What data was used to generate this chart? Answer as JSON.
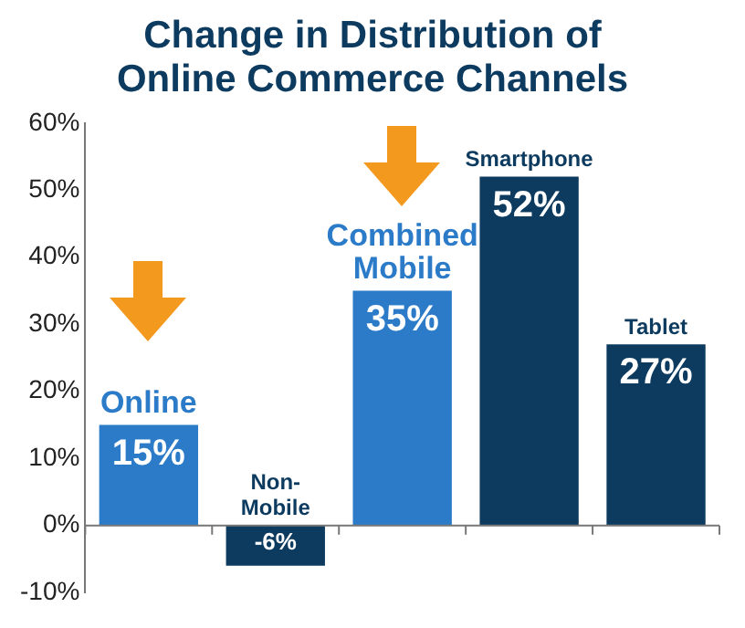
{
  "chart_data": {
    "type": "bar",
    "title": "Change in Distribution of Online Commerce Channels",
    "categories": [
      "Online",
      "Non-Mobile",
      "Combined Mobile",
      "Smartphone",
      "Tablet"
    ],
    "values": [
      15,
      -6,
      35,
      52,
      27
    ],
    "colors": [
      "#2b7bc8",
      "#0d3b5f",
      "#2b7bc8",
      "#0d3b5f",
      "#0d3b5f"
    ],
    "value_labels": [
      "15%",
      "-6%",
      "35%",
      "52%",
      "27%"
    ],
    "ylim": [
      -10,
      60
    ],
    "yticks": [
      {
        "value": -10,
        "label": "-10%"
      },
      {
        "value": 0,
        "label": "0%"
      },
      {
        "value": 10,
        "label": "10%"
      },
      {
        "value": 20,
        "label": "20%"
      },
      {
        "value": 30,
        "label": "30%"
      },
      {
        "value": 40,
        "label": "40%"
      },
      {
        "value": 50,
        "label": "50%"
      },
      {
        "value": 60,
        "label": "60%"
      }
    ],
    "ref_lines": [
      {
        "axis": "y",
        "value": 0,
        "color": "#777777"
      }
    ],
    "grid": false,
    "legend": false
  }
}
